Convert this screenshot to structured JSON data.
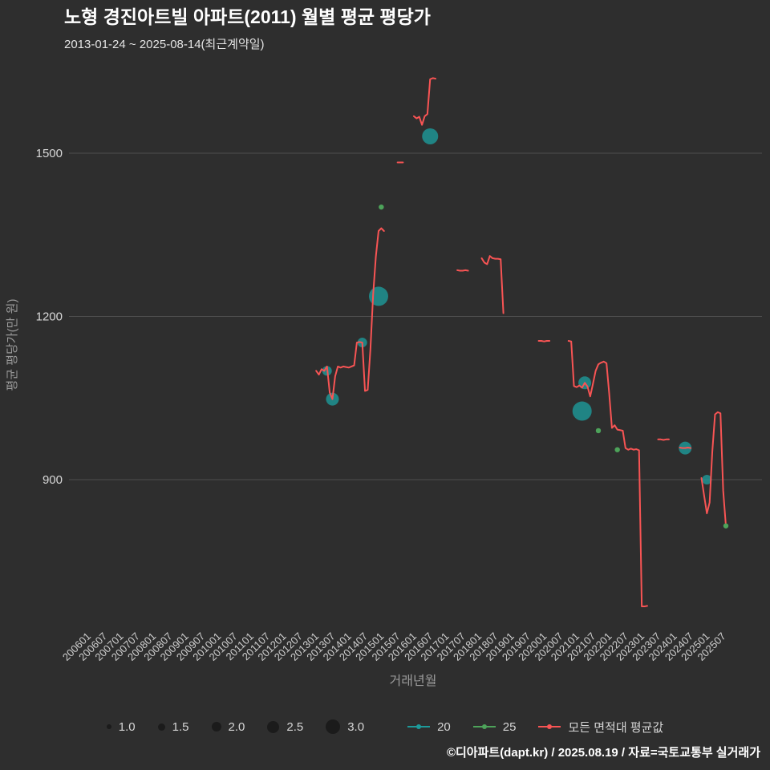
{
  "page": {
    "title": "노형 경진아트빌 아파트(2011) 월별 평균 평당가",
    "subtitle": "2013-01-24 ~ 2025-08-14(최근계약일)",
    "footer": "©디아파트(dapt.kr) / 2025.08.19 / 자료=국토교통부 실거래가",
    "background": "#2e2e2e"
  },
  "chart_data": {
    "type": "scatter",
    "title": "노형 경진아트빌 아파트(2011) 월별 평균 평당가",
    "subtitle": "2013-01-24 ~ 2025-08-14(최근계약일)",
    "xlabel": "거래년월",
    "ylabel": "평균 평당가(만 원)",
    "y_ticks": [
      900,
      1200,
      1500
    ],
    "ylim": [
      640,
      1700
    ],
    "grid": "horizontal-only",
    "x_ticks": [
      "200601",
      "200607",
      "200701",
      "200707",
      "200801",
      "200807",
      "200901",
      "200907",
      "201001",
      "201007",
      "201101",
      "201107",
      "201201",
      "201207",
      "201301",
      "201307",
      "201401",
      "201407",
      "201501",
      "201507",
      "201601",
      "201607",
      "201701",
      "201707",
      "201801",
      "201807",
      "201901",
      "201907",
      "202001",
      "202007",
      "202101",
      "202107",
      "202201",
      "202207",
      "202301",
      "202307",
      "202401",
      "202407",
      "202501",
      "202507"
    ],
    "legend": {
      "position": "bottom",
      "sizes": [
        {
          "label": "1.0",
          "scale": 1
        },
        {
          "label": "1.5",
          "scale": 1.5
        },
        {
          "label": "2.0",
          "scale": 2
        },
        {
          "label": "2.5",
          "scale": 2.5
        },
        {
          "label": "3.0",
          "scale": 3
        }
      ],
      "series": [
        {
          "label": "20",
          "color": "#1d9a9a"
        },
        {
          "label": "25",
          "color": "#4da35a"
        },
        {
          "label": "모든 면적대 평균값",
          "color": "#f85454"
        }
      ]
    },
    "series": [
      {
        "name": "20",
        "type": "bubble",
        "color": "#1d9a9a",
        "points": [
          {
            "ym": "201305",
            "v": 1100,
            "size": 1.5
          },
          {
            "ym": "201307",
            "v": 1048,
            "size": 2
          },
          {
            "ym": "201406",
            "v": 1152,
            "size": 1.5
          },
          {
            "ym": "201412",
            "v": 1237,
            "size": 3
          },
          {
            "ym": "201607",
            "v": 1531,
            "size": 2.5
          },
          {
            "ym": "202103",
            "v": 1026,
            "size": 3
          },
          {
            "ym": "202104",
            "v": 1078,
            "size": 2
          },
          {
            "ym": "202405",
            "v": 958,
            "size": 2
          },
          {
            "ym": "202501",
            "v": 900,
            "size": 1.5
          }
        ]
      },
      {
        "name": "25",
        "type": "bubble",
        "color": "#4da35a",
        "points": [
          {
            "ym": "201501",
            "v": 1401,
            "size": 1
          },
          {
            "ym": "202109",
            "v": 990,
            "size": 1
          },
          {
            "ym": "202204",
            "v": 955,
            "size": 1
          },
          {
            "ym": "202508",
            "v": 815,
            "size": 1
          }
        ]
      },
      {
        "name": "모든 면적대 평균값",
        "type": "line",
        "color": "#f85454",
        "segments": [
          [
            [
              "201301",
              1100
            ],
            [
              "201302",
              1093
            ],
            [
              "201303",
              1103
            ],
            [
              "201304",
              1100
            ],
            [
              "201305",
              1108
            ],
            [
              "201306",
              1060
            ],
            [
              "201307",
              1048
            ],
            [
              "201308",
              1090
            ],
            [
              "201309",
              1108
            ],
            [
              "201310",
              1106
            ],
            [
              "201311",
              1108
            ],
            [
              "201312",
              1107
            ],
            [
              "201401",
              1106
            ],
            [
              "201402",
              1108
            ],
            [
              "201403",
              1110
            ],
            [
              "201404",
              1152
            ],
            [
              "201405",
              1153
            ],
            [
              "201406",
              1152
            ],
            [
              "201407",
              1063
            ],
            [
              "201408",
              1065
            ],
            [
              "201409",
              1140
            ],
            [
              "201410",
              1240
            ],
            [
              "201411",
              1310
            ],
            [
              "201412",
              1357
            ],
            [
              "201501",
              1362
            ],
            [
              "201502",
              1357
            ]
          ],
          [
            [
              "201507",
              1483
            ],
            [
              "201508",
              1483
            ],
            [
              "201509",
              1483
            ]
          ],
          [
            [
              "201601",
              1568
            ],
            [
              "201602",
              1564
            ],
            [
              "201603",
              1567
            ],
            [
              "201604",
              1552
            ],
            [
              "201605",
              1568
            ],
            [
              "201606",
              1572
            ],
            [
              "201607",
              1636
            ],
            [
              "201608",
              1638
            ],
            [
              "201609",
              1637
            ]
          ],
          [
            [
              "201705",
              1285
            ],
            [
              "201706",
              1284
            ],
            [
              "201707",
              1284
            ],
            [
              "201708",
              1285
            ],
            [
              "201709",
              1284
            ]
          ],
          [
            [
              "201802",
              1307
            ],
            [
              "201803",
              1299
            ],
            [
              "201804",
              1296
            ],
            [
              "201805",
              1311
            ],
            [
              "201806",
              1307
            ],
            [
              "201807",
              1306
            ],
            [
              "201808",
              1306
            ],
            [
              "201809",
              1305
            ],
            [
              "201810",
              1206
            ]
          ],
          [
            [
              "201911",
              1155
            ],
            [
              "201912",
              1155
            ],
            [
              "202001",
              1154
            ],
            [
              "202002",
              1155
            ],
            [
              "202003",
              1155
            ]
          ],
          [
            [
              "202010",
              1155
            ],
            [
              "202011",
              1154
            ],
            [
              "202012",
              1072
            ],
            [
              "202101",
              1070
            ],
            [
              "202102",
              1073
            ],
            [
              "202103",
              1069
            ],
            [
              "202104",
              1078
            ],
            [
              "202105",
              1071
            ],
            [
              "202106",
              1053
            ],
            [
              "202107",
              1076
            ],
            [
              "202108",
              1100
            ],
            [
              "202109",
              1112
            ],
            [
              "202110",
              1115
            ],
            [
              "202111",
              1117
            ],
            [
              "202112",
              1114
            ],
            [
              "202201",
              1058
            ],
            [
              "202202",
              995
            ],
            [
              "202203",
              1000
            ],
            [
              "202204",
              992
            ],
            [
              "202205",
              991
            ],
            [
              "202206",
              990
            ],
            [
              "202207",
              958
            ],
            [
              "202208",
              955
            ],
            [
              "202209",
              957
            ],
            [
              "202210",
              955
            ],
            [
              "202211",
              956
            ],
            [
              "202212",
              954
            ],
            [
              "202301",
              667
            ],
            [
              "202302",
              667
            ],
            [
              "202303",
              668
            ]
          ],
          [
            [
              "202307",
              974
            ],
            [
              "202308",
              974
            ],
            [
              "202309",
              973
            ],
            [
              "202310",
              974
            ],
            [
              "202311",
              974
            ]
          ],
          [
            [
              "202403",
              959
            ],
            [
              "202404",
              958
            ],
            [
              "202405",
              958
            ],
            [
              "202406",
              959
            ],
            [
              "202407",
              958
            ]
          ],
          [
            [
              "202411",
              903
            ],
            [
              "202412",
              870
            ],
            [
              "202501",
              838
            ],
            [
              "202502",
              858
            ],
            [
              "202503",
              952
            ],
            [
              "202504",
              1020
            ],
            [
              "202505",
              1024
            ],
            [
              "202506",
              1022
            ],
            [
              "202507",
              880
            ],
            [
              "202508",
              815
            ]
          ]
        ]
      }
    ]
  }
}
